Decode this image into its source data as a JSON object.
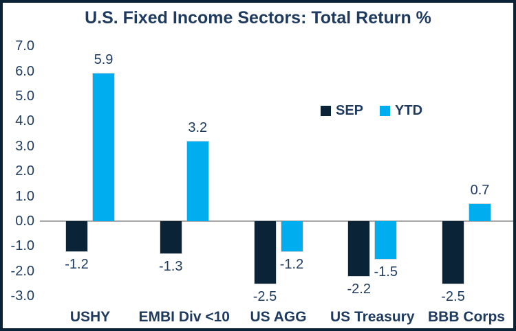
{
  "title": "U.S. Fixed Income Sectors: Total Return %",
  "colors": {
    "text": "#1E3A5F",
    "sep_bar": "#0B2337",
    "ytd_bar": "#00AEEF",
    "zero_line": "#A6A6A6",
    "frame_border": "#0B2337",
    "background": "#FFFFFF"
  },
  "chart_data": {
    "type": "bar",
    "title": "U.S. Fixed Income Sectors: Total Return %",
    "categories": [
      "USHY",
      "EMBI Div <10",
      "US AGG",
      "US Treasury",
      "BBB Corps"
    ],
    "series": [
      {
        "name": "SEP",
        "color": "#0B2337",
        "values": [
          -1.2,
          -1.3,
          -2.5,
          -2.2,
          -2.5
        ]
      },
      {
        "name": "YTD",
        "color": "#00AEEF",
        "values": [
          5.9,
          3.2,
          -1.2,
          -1.5,
          0.7
        ]
      }
    ],
    "ylim": [
      -3.0,
      7.0
    ],
    "ytick_step": 1.0,
    "yticks": [
      "7.0",
      "6.0",
      "5.0",
      "4.0",
      "3.0",
      "2.0",
      "1.0",
      "0.0",
      "-1.0",
      "-2.0",
      "-3.0"
    ],
    "grid": "zero-line-only",
    "data_labels": "outside-end",
    "legend_position": "inside-right-upper"
  }
}
